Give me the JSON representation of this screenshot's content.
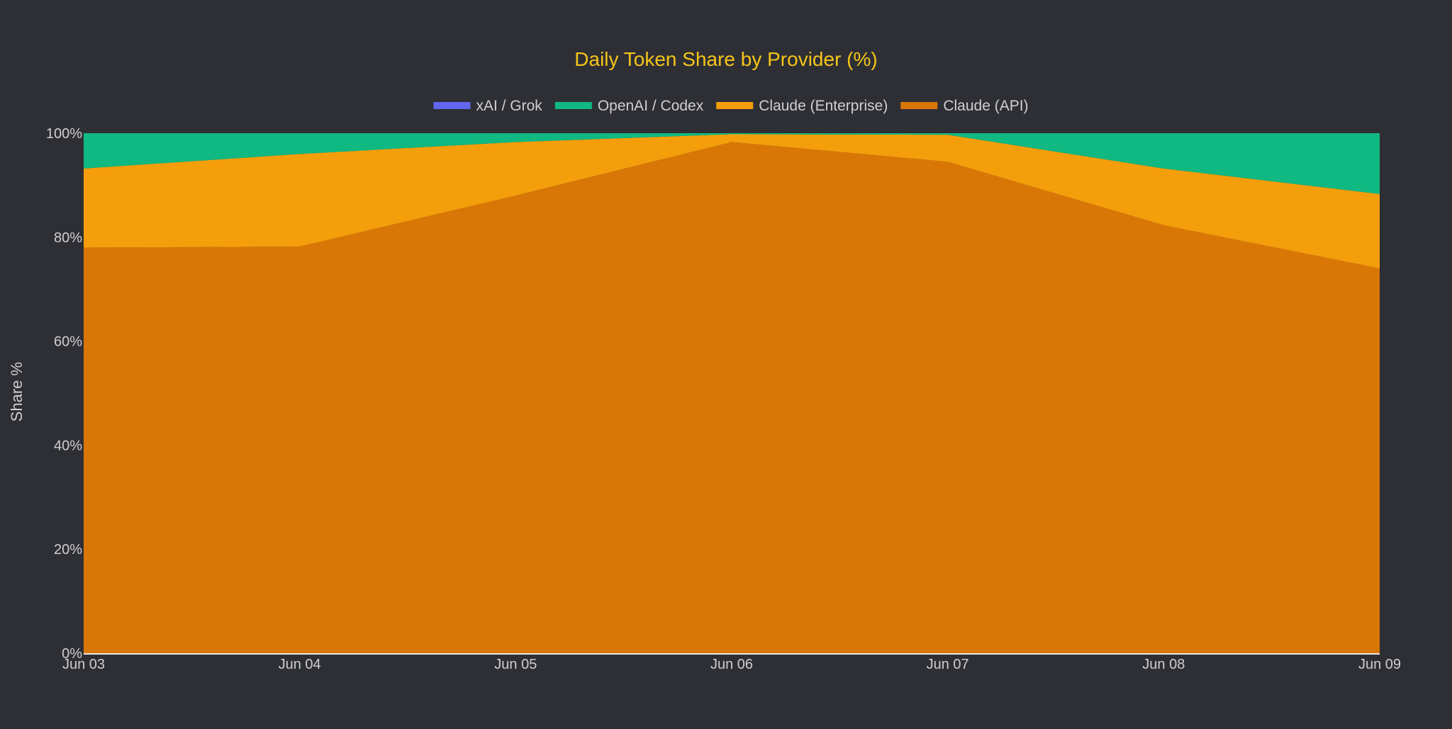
{
  "chart_data": {
    "type": "area",
    "stacked": true,
    "title": "Daily Token Share by Provider (%)",
    "xlabel": "",
    "ylabel": "Share %",
    "categories": [
      "Jun 03",
      "Jun 04",
      "Jun 05",
      "Jun 06",
      "Jun 07",
      "Jun 08",
      "Jun 09"
    ],
    "ylim": [
      0,
      100
    ],
    "yticks": [
      "0%",
      "20%",
      "40%",
      "60%",
      "80%",
      "100%"
    ],
    "grid": false,
    "legend_position": "top",
    "series": [
      {
        "name": "Claude (API)",
        "color": "#d97706",
        "values": [
          78.0,
          78.2,
          88.0,
          98.3,
          94.5,
          82.3,
          74.0
        ]
      },
      {
        "name": "Claude (Enterprise)",
        "color": "#f59e0b",
        "values": [
          15.2,
          17.8,
          10.3,
          1.5,
          5.2,
          10.9,
          14.3
        ]
      },
      {
        "name": "OpenAI / Codex",
        "color": "#10b981",
        "values": [
          6.8,
          4.0,
          1.7,
          0.2,
          0.3,
          6.8,
          11.7
        ]
      },
      {
        "name": "xAI / Grok",
        "color": "#6366f1",
        "values": [
          0.0,
          0.0,
          0.0,
          0.0,
          0.0,
          0.0,
          0.0
        ]
      }
    ],
    "legend_order": [
      "xAI / Grok",
      "OpenAI / Codex",
      "Claude (Enterprise)",
      "Claude (API)"
    ]
  }
}
